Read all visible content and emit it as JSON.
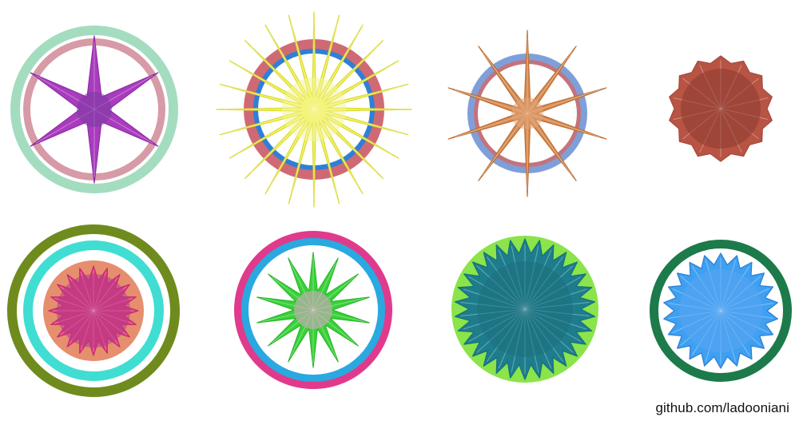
{
  "credit": "github.com/ladooniani",
  "figures": [
    {
      "name": "figure-1",
      "rings": [
        {
          "color": "#a4dcc0",
          "width": "outer"
        },
        {
          "color": "#ffffff",
          "width": "inner"
        },
        {
          "color": "#d79aa7",
          "width": "ring"
        },
        {
          "color": "#ffffff",
          "width": "fill"
        }
      ],
      "star": {
        "color": "#a93cbe",
        "points": 6,
        "stroke": "#8f2da4"
      },
      "core": {
        "color": "#7a3aa1"
      }
    },
    {
      "name": "figure-2",
      "rings": [
        {
          "color": "#cf6a75",
          "width": "outer"
        },
        {
          "color": "#2f7fd6",
          "width": "ring"
        },
        {
          "color": "#ffffff",
          "width": "fill"
        }
      ],
      "star": {
        "color": "#f1f14a",
        "points": 24,
        "stroke": "#d9d92c"
      },
      "core": {
        "color": "#f4f49a"
      }
    },
    {
      "name": "figure-3",
      "rings": [
        {
          "color": "#7f9fd8",
          "width": "outer"
        },
        {
          "color": "#c4737c",
          "width": "ring"
        },
        {
          "color": "#ffffff",
          "width": "fill"
        }
      ],
      "star": {
        "color": "#d88a4e",
        "points": 10,
        "stroke": "#bb6f36"
      },
      "core": {
        "color": "#e0a57a"
      }
    },
    {
      "name": "figure-4",
      "rings": [],
      "star": {
        "color": "#b85444",
        "points": 14,
        "stroke": "#a5493b"
      },
      "core": {
        "color": "#8b3b30"
      }
    },
    {
      "name": "figure-5",
      "rings": [
        {
          "color": "#6f8b1d",
          "width": "outer"
        },
        {
          "color": "#ffffff",
          "width": "gap"
        },
        {
          "color": "#40ddd2",
          "width": "ring"
        },
        {
          "color": "#ffffff",
          "width": "gap2"
        },
        {
          "color": "#e58f6f",
          "width": "ring2"
        }
      ],
      "star": {
        "color": "#d73a7a",
        "points": 20,
        "stroke": "#c92b6e"
      },
      "core": {
        "color": "#b83a8b"
      }
    },
    {
      "name": "figure-6",
      "rings": [
        {
          "color": "#e03a8d",
          "width": "outer"
        },
        {
          "color": "#29a9df",
          "width": "ring"
        },
        {
          "color": "#ffffff",
          "width": "fill"
        }
      ],
      "star": {
        "color": "#3ad13a",
        "points": 14,
        "stroke": "#2cb82c"
      },
      "core": {
        "color": "#e6a0d0"
      }
    },
    {
      "name": "figure-7",
      "rings": [
        {
          "color": "#8ae44a",
          "width": "outer"
        }
      ],
      "star": {
        "color": "#1e7d8d",
        "points": 30,
        "stroke": "#15707f"
      },
      "core": {
        "color": "#1d6f7e"
      }
    },
    {
      "name": "figure-8",
      "rings": [
        {
          "color": "#1d7a4a",
          "width": "outer"
        },
        {
          "color": "#ffffff",
          "width": "fill"
        }
      ],
      "star": {
        "color": "#3fa0f2",
        "points": 22,
        "stroke": "#2a7fd2"
      },
      "core": {
        "color": "#5aa6f0"
      }
    }
  ]
}
